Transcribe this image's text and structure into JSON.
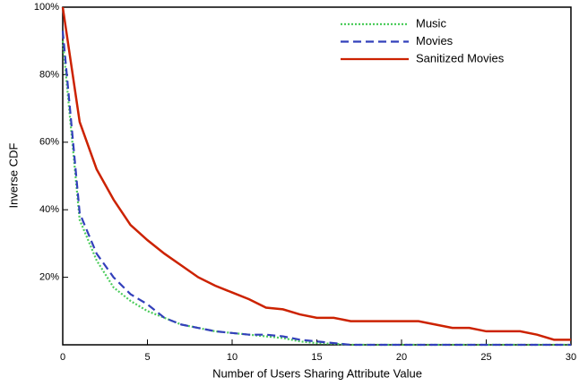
{
  "chart_data": {
    "type": "line",
    "x_label": "Number of Users Sharing Attribute Value",
    "y_label": "Inverse CDF",
    "x": [
      0,
      1,
      2,
      3,
      4,
      5,
      6,
      7,
      8,
      9,
      10,
      11,
      12,
      13,
      14,
      15,
      16,
      17,
      18,
      19,
      20,
      21,
      22,
      23,
      24,
      25,
      26,
      27,
      28,
      29,
      30
    ],
    "series": [
      {
        "name": "Music",
        "color": "#4ccc5c",
        "dash": "dotted",
        "values": [
          90,
          37,
          25,
          17,
          13,
          10,
          8,
          6,
          5,
          4,
          3.5,
          3,
          2.5,
          2,
          1,
          0.5,
          0.3,
          0,
          0,
          0,
          0,
          0,
          0,
          0,
          0,
          0,
          0,
          0,
          0,
          0,
          0
        ]
      },
      {
        "name": "Movies",
        "color": "#3340bb",
        "dash": "dashed",
        "values": [
          93,
          39,
          27,
          20,
          15,
          12,
          8,
          6,
          5,
          4,
          3.5,
          3,
          3,
          2.5,
          1.5,
          1,
          0.5,
          0,
          0,
          0,
          0,
          0,
          0,
          0,
          0,
          0,
          0,
          0,
          0,
          0,
          0
        ]
      },
      {
        "name": "Sanitized Movies",
        "color": "#cc2200",
        "dash": "solid",
        "values": [
          100,
          66,
          52,
          43,
          35.5,
          31,
          27,
          23.5,
          20,
          17.5,
          15.5,
          13.5,
          11,
          10.5,
          9,
          8,
          8,
          7,
          7,
          7,
          7,
          7,
          6,
          5,
          5,
          4,
          4,
          4,
          3,
          1.5,
          1.5
        ]
      }
    ],
    "xlim": [
      0,
      30
    ],
    "xticks": [
      0,
      5,
      10,
      15,
      20,
      25,
      30
    ],
    "ylim": [
      0,
      100
    ],
    "yticks": [
      {
        "value": 20,
        "label": "20%"
      },
      {
        "value": 40,
        "label": "40%"
      },
      {
        "value": 60,
        "label": "60%"
      },
      {
        "value": 80,
        "label": "80%"
      },
      {
        "value": 100,
        "label": "100%"
      }
    ],
    "legend": "top-right"
  }
}
